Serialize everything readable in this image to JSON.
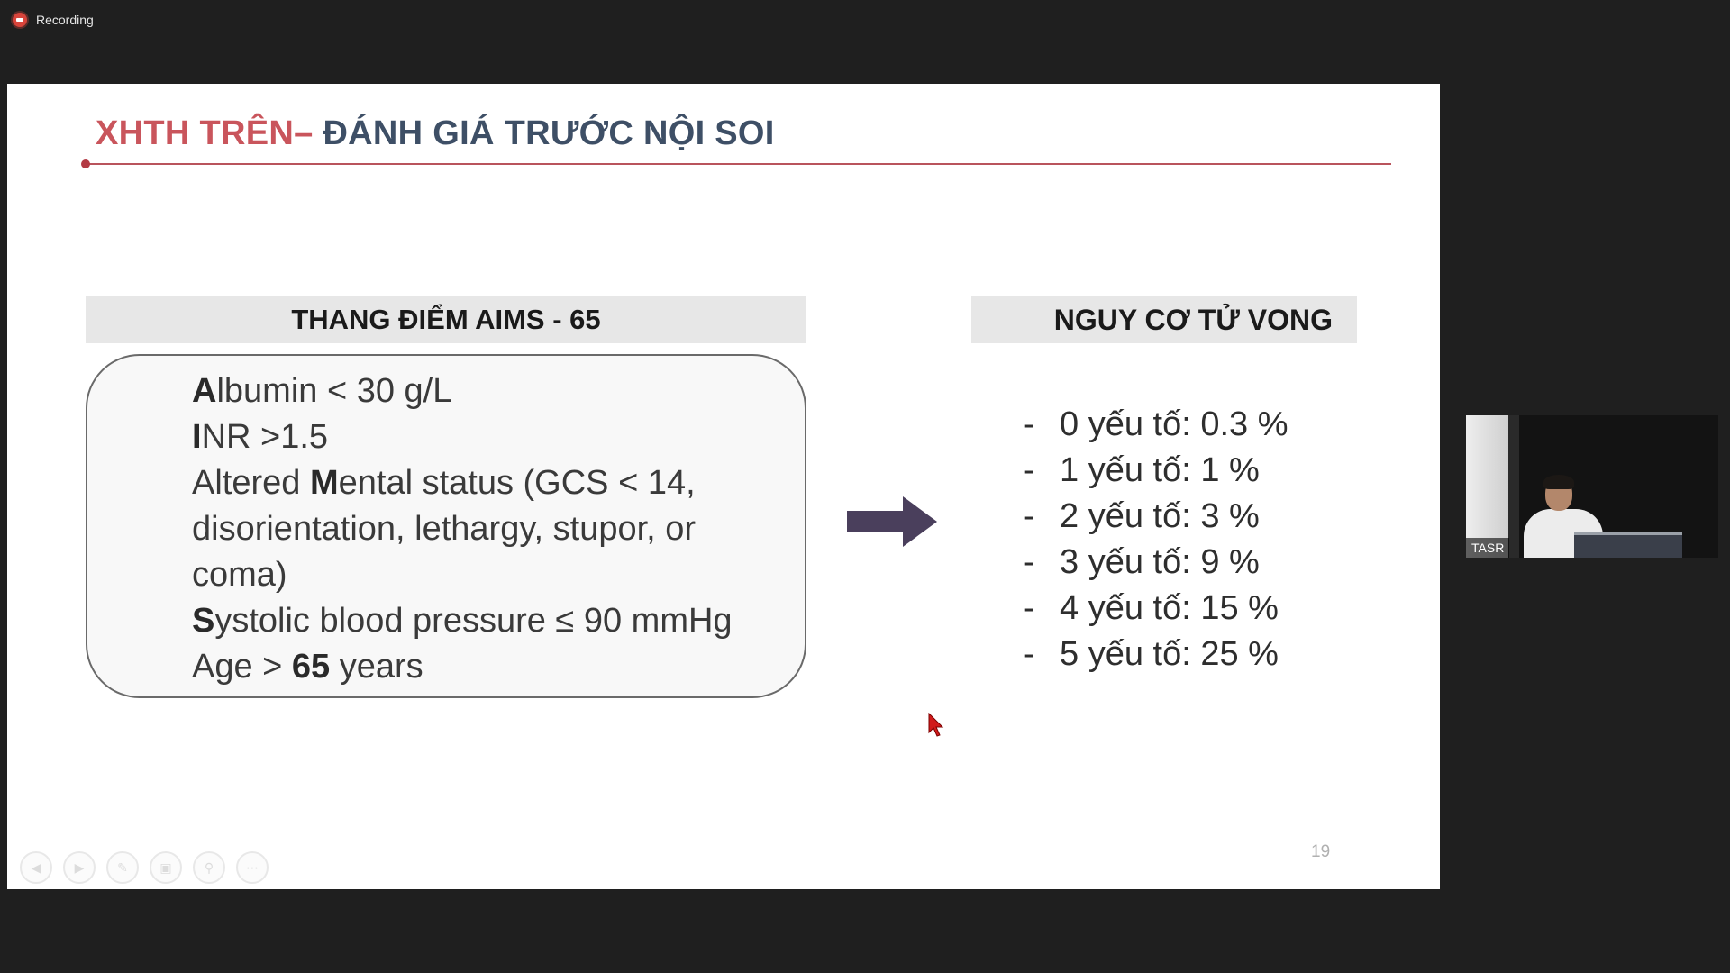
{
  "recording": {
    "label": "Recording"
  },
  "slide": {
    "title_part1": "XHTH TRÊN– ",
    "title_part2": "ĐÁNH GIÁ TRƯỚC NỘI SOI",
    "left_header": "THANG ĐIỂM AIMS - 65",
    "criteria": {
      "albumin": {
        "bold": "A",
        "rest": "lbumin < 30 g/L"
      },
      "inr": {
        "bold": "I",
        "rest": "NR >1.5"
      },
      "mental": {
        "pre": "Altered ",
        "bold": "M",
        "rest": "ental status (GCS < 14,",
        "line2": "disorientation, lethargy, stupor, or",
        "line3": "coma)"
      },
      "systolic": {
        "bold": "S",
        "rest": "ystolic blood pressure ≤ 90 mmHg"
      },
      "age": {
        "pre": "Age > ",
        "bold": "65",
        "rest": " years"
      }
    },
    "right_header": "NGUY CƠ TỬ VONG",
    "risk_items": [
      "0 yếu tố: 0.3 %",
      "1 yếu tố: 1 %",
      "2 yếu tố: 3 %",
      "3 yếu tố: 9 %",
      "4 yếu tố: 15 %",
      "5 yếu tố: 25 %"
    ],
    "dash": "-",
    "page_number": "19",
    "arrow_color": "#4a3f5c",
    "title_red": "#c9555c",
    "title_blue": "#3e4f66"
  },
  "nav_controls": [
    {
      "icon": "prev-icon",
      "glyph": "◀"
    },
    {
      "icon": "next-icon",
      "glyph": "▶"
    },
    {
      "icon": "pen-icon",
      "glyph": "✎"
    },
    {
      "icon": "slides-icon",
      "glyph": "▣"
    },
    {
      "icon": "zoom-icon",
      "glyph": "⚲"
    },
    {
      "icon": "more-icon",
      "glyph": "⋯"
    }
  ],
  "webcam": {
    "name": "TASR"
  }
}
